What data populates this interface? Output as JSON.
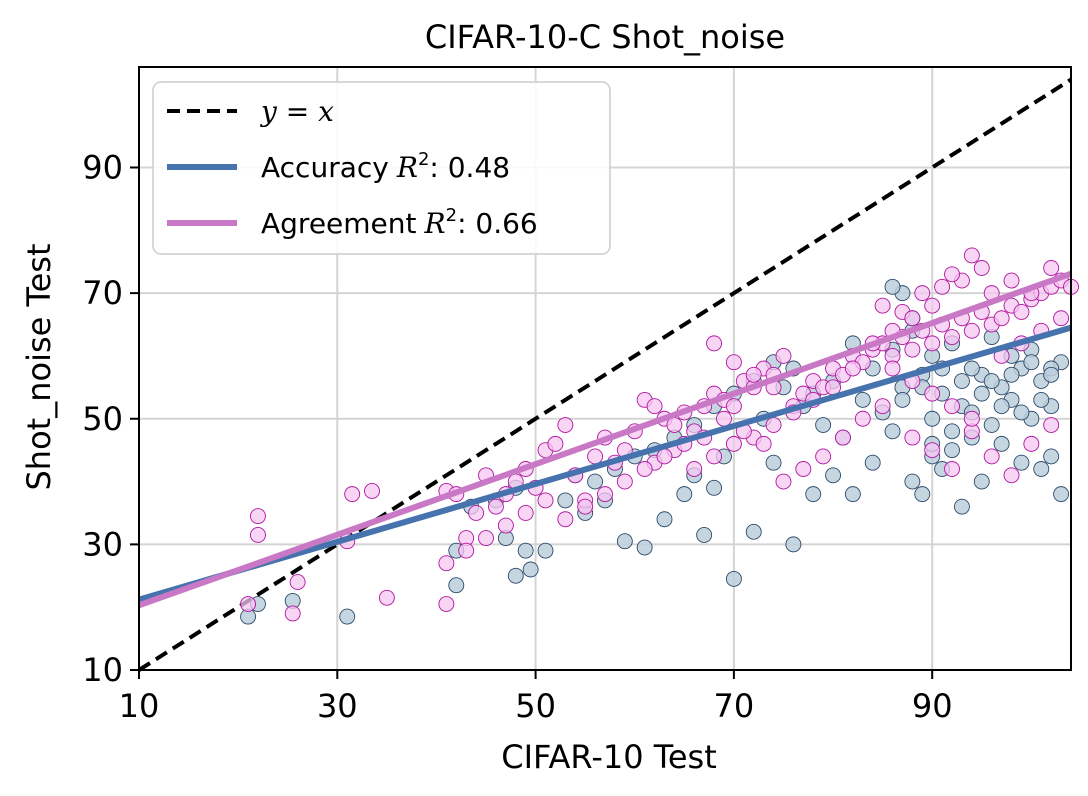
{
  "chart_data": {
    "type": "scatter",
    "title": "CIFAR-10-C Shot_noise",
    "xlabel": "CIFAR-10 Test",
    "ylabel": "Shot_noise Test",
    "xlim": [
      10,
      104
    ],
    "ylim": [
      10,
      106
    ],
    "xticks": [
      10,
      30,
      50,
      70,
      90
    ],
    "yticks": [
      10,
      30,
      50,
      70,
      90
    ],
    "grid": true,
    "legend_position": "top-left",
    "legend": [
      {
        "kind": "yx",
        "label": "y = x",
        "color": "#000000"
      },
      {
        "kind": "accuracy",
        "label_prefix": "Accuracy",
        "label_r2": "R",
        "label_sup": "2",
        "label_value": ": 0.48",
        "color": "#4672ad"
      },
      {
        "kind": "agreement",
        "label_prefix": "Agreement",
        "label_r2": "R",
        "label_sup": "2",
        "label_value": ": 0.66",
        "color": "#c978c6"
      }
    ],
    "colors": {
      "accuracy_fill": "#bccfdc",
      "accuracy_edge": "#2d4a6a",
      "agreement_fill": "#f5c6f2",
      "agreement_edge": "#b0169e",
      "grid": "#d4d4d4"
    },
    "series": [
      {
        "name": "Accuracy",
        "fit": {
          "x": [
            10,
            104
          ],
          "y": [
            21.2,
            64.5
          ]
        },
        "points": [
          [
            21,
            18.5
          ],
          [
            22,
            20.5
          ],
          [
            25.5,
            21
          ],
          [
            31,
            18.5
          ],
          [
            42,
            23.5
          ],
          [
            42,
            29
          ],
          [
            43.5,
            36
          ],
          [
            47,
            31
          ],
          [
            48,
            25
          ],
          [
            49,
            29
          ],
          [
            49.5,
            26
          ],
          [
            46,
            37
          ],
          [
            48,
            39
          ],
          [
            51,
            29
          ],
          [
            53,
            37
          ],
          [
            55,
            35
          ],
          [
            57,
            37
          ],
          [
            59,
            30.5
          ],
          [
            61,
            29.5
          ],
          [
            63,
            34
          ],
          [
            65,
            38
          ],
          [
            66,
            41
          ],
          [
            67,
            31.5
          ],
          [
            68,
            39
          ],
          [
            69,
            44
          ],
          [
            70,
            24.5
          ],
          [
            72,
            32
          ],
          [
            74,
            43
          ],
          [
            76,
            30
          ],
          [
            78,
            38
          ],
          [
            80,
            41
          ],
          [
            82,
            38
          ],
          [
            84,
            43
          ],
          [
            86,
            48
          ],
          [
            88,
            40
          ],
          [
            89,
            38
          ],
          [
            90,
            44
          ],
          [
            91,
            42
          ],
          [
            93,
            36
          ],
          [
            95,
            40
          ],
          [
            97,
            46
          ],
          [
            99,
            43
          ],
          [
            101,
            42
          ],
          [
            102,
            44
          ],
          [
            103,
            38
          ],
          [
            73,
            50
          ],
          [
            75,
            55
          ],
          [
            77,
            52
          ],
          [
            79,
            49
          ],
          [
            81,
            47
          ],
          [
            83,
            53
          ],
          [
            85,
            51
          ],
          [
            87,
            55
          ],
          [
            89,
            57
          ],
          [
            91,
            54
          ],
          [
            93,
            52
          ],
          [
            95,
            57
          ],
          [
            97,
            55
          ],
          [
            99,
            58
          ],
          [
            101,
            56
          ],
          [
            103,
            59
          ],
          [
            86,
            61
          ],
          [
            88,
            64
          ],
          [
            90,
            60
          ],
          [
            92,
            62
          ],
          [
            94,
            58
          ],
          [
            96,
            63
          ],
          [
            98,
            60
          ],
          [
            100,
            61
          ],
          [
            102,
            58
          ],
          [
            87,
            70
          ],
          [
            86,
            71
          ],
          [
            88,
            66
          ],
          [
            90,
            50
          ],
          [
            92,
            48
          ],
          [
            94,
            51
          ],
          [
            96,
            49
          ],
          [
            98,
            53
          ],
          [
            100,
            50
          ],
          [
            102,
            52
          ],
          [
            84,
            58
          ],
          [
            82,
            62
          ],
          [
            80,
            56
          ],
          [
            78,
            54
          ],
          [
            76,
            58
          ],
          [
            74,
            59
          ],
          [
            72,
            56
          ],
          [
            70,
            54
          ],
          [
            68,
            52
          ],
          [
            66,
            49
          ],
          [
            64,
            47
          ],
          [
            62,
            45
          ],
          [
            60,
            44
          ],
          [
            58,
            42
          ],
          [
            56,
            40
          ],
          [
            54,
            41
          ],
          [
            90,
            46
          ],
          [
            92,
            45
          ],
          [
            94,
            47
          ],
          [
            96,
            56
          ],
          [
            98,
            57
          ],
          [
            100,
            59
          ],
          [
            102,
            57
          ],
          [
            101,
            53
          ],
          [
            99,
            51
          ],
          [
            97,
            52
          ],
          [
            95,
            54
          ],
          [
            93,
            56
          ],
          [
            91,
            58
          ],
          [
            89,
            55
          ],
          [
            87,
            53
          ]
        ]
      },
      {
        "name": "Agreement",
        "fit": {
          "x": [
            10,
            104
          ],
          "y": [
            20.3,
            73.1
          ]
        },
        "points": [
          [
            22,
            34.5
          ],
          [
            22,
            31.5
          ],
          [
            21,
            20.5
          ],
          [
            25.5,
            19
          ],
          [
            26,
            24
          ],
          [
            31,
            30.5
          ],
          [
            31.5,
            38
          ],
          [
            33.5,
            38.5
          ],
          [
            35,
            21.5
          ],
          [
            41,
            20.5
          ],
          [
            41,
            38.5
          ],
          [
            42,
            38
          ],
          [
            43,
            31
          ],
          [
            44,
            35
          ],
          [
            45,
            41
          ],
          [
            46,
            36
          ],
          [
            47,
            38
          ],
          [
            48,
            40
          ],
          [
            49,
            42
          ],
          [
            50,
            39
          ],
          [
            51,
            45
          ],
          [
            52,
            46
          ],
          [
            53,
            49
          ],
          [
            54,
            41
          ],
          [
            55,
            37
          ],
          [
            56,
            44
          ],
          [
            57,
            47
          ],
          [
            58,
            43
          ],
          [
            59,
            45
          ],
          [
            60,
            48
          ],
          [
            61,
            53
          ],
          [
            62,
            52
          ],
          [
            63,
            50
          ],
          [
            64,
            49
          ],
          [
            65,
            51
          ],
          [
            66,
            48
          ],
          [
            67,
            52
          ],
          [
            68,
            54
          ],
          [
            69,
            53
          ],
          [
            70,
            52
          ],
          [
            71,
            56
          ],
          [
            72,
            55
          ],
          [
            73,
            58
          ],
          [
            74,
            57
          ],
          [
            75,
            60
          ],
          [
            76,
            52
          ],
          [
            77,
            54
          ],
          [
            78,
            56
          ],
          [
            79,
            55
          ],
          [
            80,
            58
          ],
          [
            81,
            57
          ],
          [
            82,
            60
          ],
          [
            83,
            59
          ],
          [
            84,
            61
          ],
          [
            85,
            62
          ],
          [
            86,
            60
          ],
          [
            87,
            63
          ],
          [
            88,
            61
          ],
          [
            89,
            64
          ],
          [
            90,
            62
          ],
          [
            91,
            65
          ],
          [
            92,
            63
          ],
          [
            93,
            66
          ],
          [
            94,
            64
          ],
          [
            95,
            67
          ],
          [
            96,
            65
          ],
          [
            97,
            66
          ],
          [
            98,
            68
          ],
          [
            99,
            67
          ],
          [
            100,
            69
          ],
          [
            101,
            70
          ],
          [
            102,
            71
          ],
          [
            103,
            72
          ],
          [
            104,
            71
          ],
          [
            85,
            68
          ],
          [
            87,
            67
          ],
          [
            89,
            70
          ],
          [
            91,
            71
          ],
          [
            93,
            72
          ],
          [
            95,
            74
          ],
          [
            94,
            76
          ],
          [
            92,
            73
          ],
          [
            90,
            68
          ],
          [
            88,
            66
          ],
          [
            86,
            64
          ],
          [
            84,
            62
          ],
          [
            82,
            58
          ],
          [
            80,
            55
          ],
          [
            78,
            53
          ],
          [
            76,
            51
          ],
          [
            74,
            49
          ],
          [
            72,
            47
          ],
          [
            70,
            46
          ],
          [
            68,
            44
          ],
          [
            66,
            42
          ],
          [
            64,
            45
          ],
          [
            62,
            43
          ],
          [
            88,
            47
          ],
          [
            90,
            45
          ],
          [
            92,
            42
          ],
          [
            94,
            48
          ],
          [
            96,
            44
          ],
          [
            98,
            41
          ],
          [
            100,
            46
          ],
          [
            102,
            49
          ],
          [
            85,
            52
          ],
          [
            83,
            50
          ],
          [
            81,
            47
          ],
          [
            79,
            44
          ],
          [
            77,
            42
          ],
          [
            75,
            40
          ],
          [
            73,
            46
          ],
          [
            71,
            48
          ],
          [
            69,
            50
          ],
          [
            67,
            47
          ],
          [
            65,
            46
          ],
          [
            63,
            44
          ],
          [
            61,
            42
          ],
          [
            59,
            40
          ],
          [
            57,
            38
          ],
          [
            55,
            36
          ],
          [
            53,
            34
          ],
          [
            51,
            37
          ],
          [
            49,
            35
          ],
          [
            47,
            33
          ],
          [
            45,
            31
          ],
          [
            43,
            29
          ],
          [
            41,
            27
          ],
          [
            68,
            62
          ],
          [
            70,
            59
          ],
          [
            72,
            57
          ],
          [
            74,
            55
          ],
          [
            96,
            70
          ],
          [
            98,
            72
          ],
          [
            100,
            70
          ],
          [
            102,
            74
          ],
          [
            97,
            60
          ],
          [
            99,
            62
          ],
          [
            101,
            64
          ],
          [
            103,
            66
          ],
          [
            86,
            58
          ],
          [
            88,
            56
          ],
          [
            90,
            54
          ],
          [
            92,
            52
          ],
          [
            94,
            50
          ]
        ]
      }
    ]
  }
}
